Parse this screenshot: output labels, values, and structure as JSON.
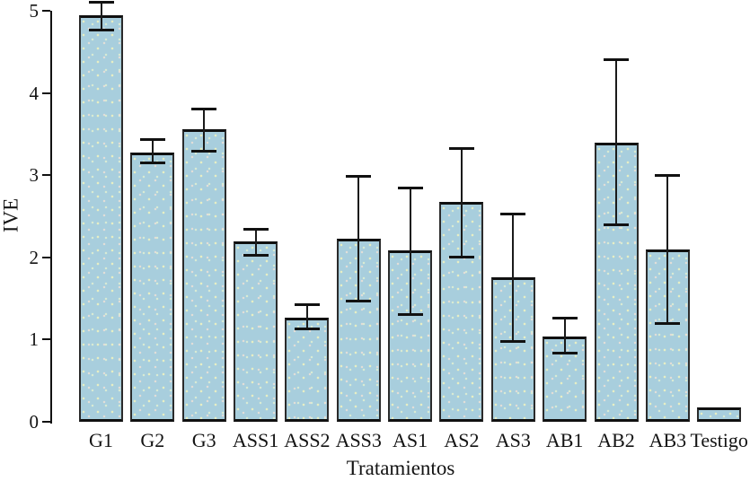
{
  "chart_data": {
    "type": "bar",
    "title": "",
    "xlabel": "Tratamientos",
    "ylabel": "IVE",
    "ylim": [
      0,
      5
    ],
    "yticks": [
      "0",
      "1",
      "2",
      "3",
      "4",
      "5"
    ],
    "grid": false,
    "legend": false,
    "bar_color": "#a8cedd",
    "bar_border_color": "#2b2b2b",
    "error_bar_color": "#111111",
    "categories": [
      "G1",
      "G2",
      "G3",
      "ASS1",
      "ASS2",
      "ASS3",
      "AS1",
      "AS2",
      "AS3",
      "AB1",
      "AB2",
      "AB3",
      "Testigo"
    ],
    "values": [
      4.95,
      3.28,
      3.56,
      2.19,
      1.27,
      2.23,
      2.08,
      2.67,
      1.76,
      1.04,
      3.4,
      2.1,
      0.18
    ],
    "error_low": [
      4.77,
      3.15,
      3.29,
      2.03,
      1.13,
      1.47,
      1.3,
      2.0,
      0.98,
      0.83,
      2.4,
      1.19,
      null
    ],
    "error_high": [
      5.1,
      3.43,
      3.81,
      2.34,
      1.42,
      2.99,
      2.84,
      3.32,
      2.53,
      1.26,
      4.4,
      3.0,
      null
    ]
  }
}
